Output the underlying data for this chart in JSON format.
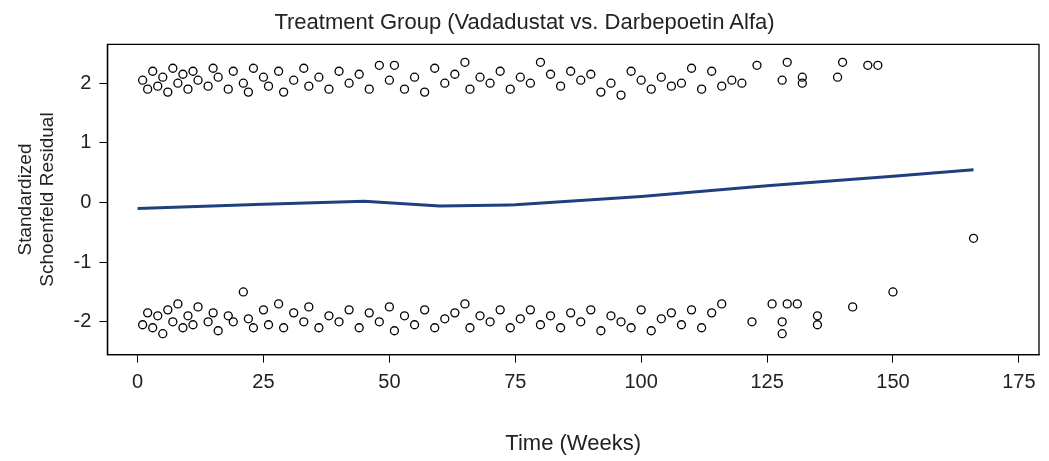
{
  "chart_data": {
    "type": "scatter",
    "title": "Treatment Group (Vadadustat vs. Darbepoetin Alfa)",
    "xlabel": "Time (Weeks)",
    "ylabel": "Standardized\nSchoenfeld Residual",
    "xlim": [
      -6,
      179
    ],
    "ylim": [
      -2.55,
      2.65
    ],
    "xticks": [
      0,
      25,
      50,
      75,
      100,
      125,
      150,
      175
    ],
    "yticks": [
      -2,
      -1,
      0,
      1,
      2
    ],
    "grid": false,
    "legend": false,
    "series": [
      {
        "type": "scatter",
        "marker": "circle",
        "color": "#000000",
        "x": [
          1,
          2,
          3,
          4,
          5,
          6,
          7,
          8,
          9,
          10,
          11,
          12,
          14,
          15,
          16,
          18,
          19,
          21,
          22,
          23,
          25,
          26,
          28,
          29,
          31,
          33,
          34,
          36,
          38,
          40,
          42,
          44,
          46,
          48,
          50,
          51,
          53,
          55,
          57,
          59,
          61,
          63,
          65,
          66,
          68,
          70,
          72,
          74,
          76,
          78,
          80,
          82,
          84,
          86,
          88,
          90,
          92,
          94,
          96,
          98,
          100,
          102,
          104,
          106,
          108,
          110,
          112,
          114,
          116,
          118,
          120,
          123,
          128,
          129,
          132,
          132,
          139,
          140,
          145,
          147,
          1,
          2,
          3,
          4,
          5,
          6,
          7,
          8,
          9,
          10,
          11,
          12,
          14,
          15,
          16,
          18,
          19,
          21,
          22,
          23,
          25,
          26,
          28,
          29,
          31,
          33,
          34,
          36,
          38,
          40,
          42,
          44,
          46,
          48,
          50,
          51,
          53,
          55,
          57,
          59,
          61,
          63,
          65,
          66,
          68,
          70,
          72,
          74,
          76,
          78,
          80,
          82,
          84,
          86,
          88,
          90,
          92,
          94,
          96,
          98,
          100,
          102,
          104,
          106,
          108,
          110,
          112,
          114,
          116,
          122,
          126,
          128,
          128,
          129,
          131,
          135,
          135,
          142,
          150,
          166
        ],
        "values": [
          2.05,
          1.9,
          2.2,
          1.95,
          2.1,
          1.85,
          2.25,
          2.0,
          2.15,
          1.9,
          2.2,
          2.05,
          1.95,
          2.25,
          2.1,
          1.9,
          2.2,
          2.0,
          1.85,
          2.25,
          2.1,
          1.95,
          2.2,
          1.85,
          2.05,
          2.25,
          1.95,
          2.1,
          1.9,
          2.2,
          2.0,
          2.15,
          1.9,
          2.3,
          2.05,
          2.3,
          1.9,
          2.1,
          1.85,
          2.25,
          2.0,
          2.15,
          2.35,
          1.9,
          2.1,
          2.0,
          2.2,
          1.9,
          2.1,
          2.0,
          2.35,
          2.15,
          1.95,
          2.2,
          2.05,
          2.15,
          1.85,
          2.0,
          1.8,
          2.2,
          2.05,
          1.9,
          2.1,
          1.95,
          2.0,
          2.25,
          1.9,
          2.2,
          1.95,
          2.05,
          2.0,
          2.3,
          2.05,
          2.35,
          2.0,
          2.1,
          2.1,
          2.35,
          2.3,
          2.3,
          -2.05,
          -1.85,
          -2.1,
          -1.9,
          -2.2,
          -1.8,
          -2.0,
          -1.7,
          -2.1,
          -1.9,
          -2.05,
          -1.75,
          -2.0,
          -1.85,
          -2.15,
          -1.9,
          -2.0,
          -1.5,
          -1.95,
          -2.1,
          -1.8,
          -2.05,
          -1.7,
          -2.1,
          -1.85,
          -2.0,
          -1.75,
          -2.1,
          -1.9,
          -2.0,
          -1.8,
          -2.1,
          -1.85,
          -2.0,
          -1.75,
          -2.15,
          -1.9,
          -2.05,
          -1.8,
          -2.1,
          -1.95,
          -1.85,
          -1.7,
          -2.1,
          -1.9,
          -2.0,
          -1.8,
          -2.1,
          -1.95,
          -1.8,
          -2.05,
          -1.9,
          -2.1,
          -1.85,
          -2.0,
          -1.8,
          -2.15,
          -1.9,
          -2.0,
          -2.1,
          -1.8,
          -2.15,
          -1.95,
          -1.85,
          -2.05,
          -1.8,
          -2.1,
          -1.85,
          -1.7,
          -2.0,
          -1.7,
          -2.0,
          -2.2,
          -1.7,
          -1.7,
          -1.9,
          -2.05,
          -1.75,
          -1.5,
          -0.6
        ]
      },
      {
        "type": "line",
        "marker": "none",
        "color": "#1f3f7f",
        "x": [
          0,
          25,
          45,
          60,
          75,
          100,
          125,
          150,
          166
        ],
        "values": [
          -0.1,
          -0.03,
          0.02,
          -0.06,
          -0.04,
          0.1,
          0.28,
          0.44,
          0.55
        ]
      }
    ]
  }
}
